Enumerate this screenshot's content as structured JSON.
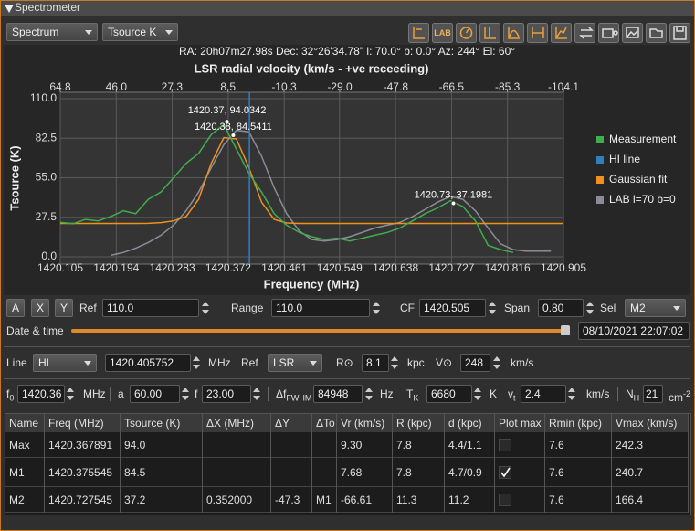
{
  "window": {
    "title": "Spectrometer"
  },
  "toolbar": {
    "mode": "Spectrum",
    "units": "Tsource K",
    "lab_button": "LAB"
  },
  "chart_data": {
    "type": "line",
    "subtitle": "RA: 20h07m27.98s Dec: 32°26'34.78\" l: 70.0° b: 0.0° Az: 244° El: 60°",
    "x2_label": "LSR radial velocity (km/s - +ve receeding)",
    "x_label": "Frequency (MHz)",
    "y_label": "Tsource (K)",
    "x": [
      1420.105,
      1420.125,
      1420.145,
      1420.165,
      1420.185,
      1420.205,
      1420.225,
      1420.245,
      1420.265,
      1420.285,
      1420.305,
      1420.325,
      1420.345,
      1420.365,
      1420.385,
      1420.405,
      1420.425,
      1420.445,
      1420.465,
      1420.485,
      1420.505,
      1420.525,
      1420.545,
      1420.565,
      1420.585,
      1420.605,
      1420.625,
      1420.645,
      1420.665,
      1420.685,
      1420.705,
      1420.725,
      1420.745,
      1420.765,
      1420.785,
      1420.805,
      1420.825,
      1420.845,
      1420.865,
      1420.885,
      1420.905
    ],
    "xlim": [
      1420.105,
      1420.905
    ],
    "xticks": [
      1420.105,
      1420.194,
      1420.283,
      1420.372,
      1420.461,
      1420.549,
      1420.638,
      1420.727,
      1420.816,
      1420.905
    ],
    "x2lim": [
      64.8,
      -104.1
    ],
    "x2ticks": [
      64.8,
      {
        "value": 46,
        "label": "46.0"
      },
      27.3,
      8.5,
      -10.3,
      {
        "value": -29,
        "label": "-29.0"
      },
      -47.8,
      -66.5,
      -85.3,
      -104.1
    ],
    "ylim": [
      0,
      110
    ],
    "yticks": [
      {
        "value": 0,
        "label": "0.0"
      },
      27.5,
      {
        "value": 55,
        "label": "55.0"
      },
      82.5,
      {
        "value": 110,
        "label": "110.0"
      }
    ],
    "grid": true,
    "legend": "right",
    "series": [
      {
        "name": "Measurement",
        "color": "#3fae4c",
        "values": [
          24,
          23,
          26,
          25,
          28,
          32,
          30,
          40,
          45,
          55,
          65,
          72,
          85,
          92,
          75,
          58,
          45,
          30,
          22,
          17,
          14,
          12,
          13,
          11,
          13,
          15,
          17,
          20,
          25,
          30,
          34,
          39,
          35,
          25,
          8,
          5,
          3,
          null,
          null,
          null,
          null
        ]
      },
      {
        "name": "HI line",
        "color": "#2f7fbf",
        "vline": 1420.405752
      },
      {
        "name": "Gaussian fit",
        "color": "#f0901e",
        "values": [
          23.2,
          23.2,
          23.2,
          23.2,
          23.2,
          23.2,
          23.2,
          23.3,
          23.8,
          25,
          28,
          40,
          65,
          83,
          82,
          62,
          38,
          26,
          23.5,
          23.2,
          23.2,
          23.2,
          23.2,
          23.2,
          23.2,
          23.2,
          23.2,
          23.2,
          23.2,
          23.2,
          23.2,
          23.2,
          23.2,
          23.2,
          23.2,
          23.2,
          23.2,
          23.2,
          23.2,
          23.2,
          23.2
        ]
      },
      {
        "name": "LAB l=70 b=0",
        "color": "#8c8c99",
        "values": [
          null,
          null,
          null,
          null,
          1,
          3,
          6,
          10,
          15,
          22,
          32,
          45,
          62,
          78,
          88,
          87,
          70,
          48,
          30,
          18,
          12,
          11,
          12,
          14,
          17,
          20,
          22,
          24,
          28,
          33,
          38,
          42,
          40,
          32,
          20,
          9,
          5,
          4,
          4,
          4,
          null
        ]
      }
    ],
    "markers": [
      {
        "x": 1420.37,
        "y": 94.0342,
        "label": "1420.37, 94.0342"
      },
      {
        "x": 1420.38,
        "y": 84.5411,
        "label": "1420.38, 84.5411"
      },
      {
        "x": 1420.73,
        "y": 37.1981,
        "label": "1420.73, 37.1981"
      }
    ]
  },
  "controls": {
    "axes_buttons": [
      "A",
      "X",
      "Y"
    ],
    "ref": {
      "label": "Ref",
      "value": "110.0"
    },
    "range": {
      "label": "Range",
      "value": "110.0"
    },
    "cf": {
      "label": "CF",
      "value": "1420.505"
    },
    "span": {
      "label": "Span",
      "value": "0.80"
    },
    "sel": {
      "label": "Sel",
      "value": "M2"
    },
    "datetime": {
      "label": "Date & time",
      "value": "08/10/2021 22:07:02"
    },
    "line": {
      "label": "Line",
      "value": "HI"
    },
    "line_freq": {
      "value": "1420.405752",
      "unit": "MHz"
    },
    "ref_frame": {
      "label": "Ref",
      "value": "LSR"
    },
    "r_sun": {
      "label": "R⊙",
      "value": "8.1",
      "unit": "kpc"
    },
    "v_sun": {
      "label": "V⊙",
      "value": "248",
      "unit": "km/s"
    },
    "f0": {
      "label": "f",
      "sub": "0",
      "value": "1420.36",
      "unit": "MHz"
    },
    "a": {
      "label": "a",
      "value": "60.00"
    },
    "f": {
      "label": "f",
      "value": "23.00"
    },
    "fwhm": {
      "label": "Δf",
      "sub": "FWHM",
      "value": "84948",
      "unit": "Hz"
    },
    "tk": {
      "label": "T",
      "sub": "K",
      "value": "6680",
      "unit": "K"
    },
    "vt": {
      "label": "v",
      "sub": "t",
      "value": "2.4",
      "unit": "km/s"
    },
    "nh": {
      "label": "N",
      "sub": "H",
      "value": "21",
      "unit": "cm",
      "unit_sup": "-2"
    }
  },
  "table": {
    "columns": [
      "Name",
      "Freq (MHz)",
      "Tsource (K)",
      "ΔX (MHz)",
      "ΔY",
      "ΔTo",
      "Vr (km/s)",
      "R (kpc)",
      "d (kpc)",
      "Plot max",
      "Rmin (kpc)",
      "Vmax (km/s)"
    ],
    "rows": [
      [
        "Max",
        "1420.367891",
        "94.0",
        null,
        null,
        null,
        "9.30",
        "7.8",
        "4.4/1.1",
        false,
        "7.6",
        "242.3"
      ],
      [
        "M1",
        "1420.375545",
        "84.5",
        null,
        null,
        null,
        "7.68",
        "7.8",
        "4.7/0.9",
        true,
        "7.6",
        "240.7"
      ],
      [
        "M2",
        "1420.727545",
        "37.2",
        "0.352000",
        "-47.3",
        "M1",
        "-66.61",
        "11.3",
        "11.2",
        false,
        "7.6",
        "166.4"
      ]
    ]
  }
}
